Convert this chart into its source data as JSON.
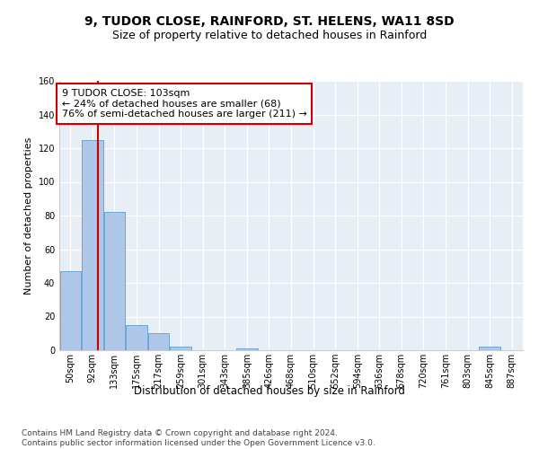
{
  "title1": "9, TUDOR CLOSE, RAINFORD, ST. HELENS, WA11 8SD",
  "title2": "Size of property relative to detached houses in Rainford",
  "xlabel": "Distribution of detached houses by size in Rainford",
  "ylabel": "Number of detached properties",
  "categories": [
    "50sqm",
    "92sqm",
    "133sqm",
    "175sqm",
    "217sqm",
    "259sqm",
    "301sqm",
    "343sqm",
    "385sqm",
    "426sqm",
    "468sqm",
    "510sqm",
    "552sqm",
    "594sqm",
    "636sqm",
    "678sqm",
    "720sqm",
    "761sqm",
    "803sqm",
    "845sqm",
    "887sqm"
  ],
  "values": [
    47,
    125,
    82,
    15,
    10,
    2,
    0,
    0,
    1,
    0,
    0,
    0,
    0,
    0,
    0,
    0,
    0,
    0,
    0,
    2,
    0
  ],
  "bar_color": "#aec6e8",
  "bar_edge_color": "#5a9fd4",
  "vline_color": "#cc0000",
  "vline_x": 1.27,
  "annotation_text": "9 TUDOR CLOSE: 103sqm\n← 24% of detached houses are smaller (68)\n76% of semi-detached houses are larger (211) →",
  "annotation_box_color": "#ffffff",
  "annotation_box_edge": "#cc0000",
  "background_color": "#e8eef5",
  "ylim": [
    0,
    160
  ],
  "yticks": [
    0,
    20,
    40,
    60,
    80,
    100,
    120,
    140,
    160
  ],
  "title1_fontsize": 10,
  "title2_fontsize": 9,
  "xlabel_fontsize": 8.5,
  "ylabel_fontsize": 8,
  "tick_fontsize": 7,
  "annotation_fontsize": 8,
  "footer_fontsize": 6.5,
  "footer": "Contains HM Land Registry data © Crown copyright and database right 2024.\nContains public sector information licensed under the Open Government Licence v3.0."
}
